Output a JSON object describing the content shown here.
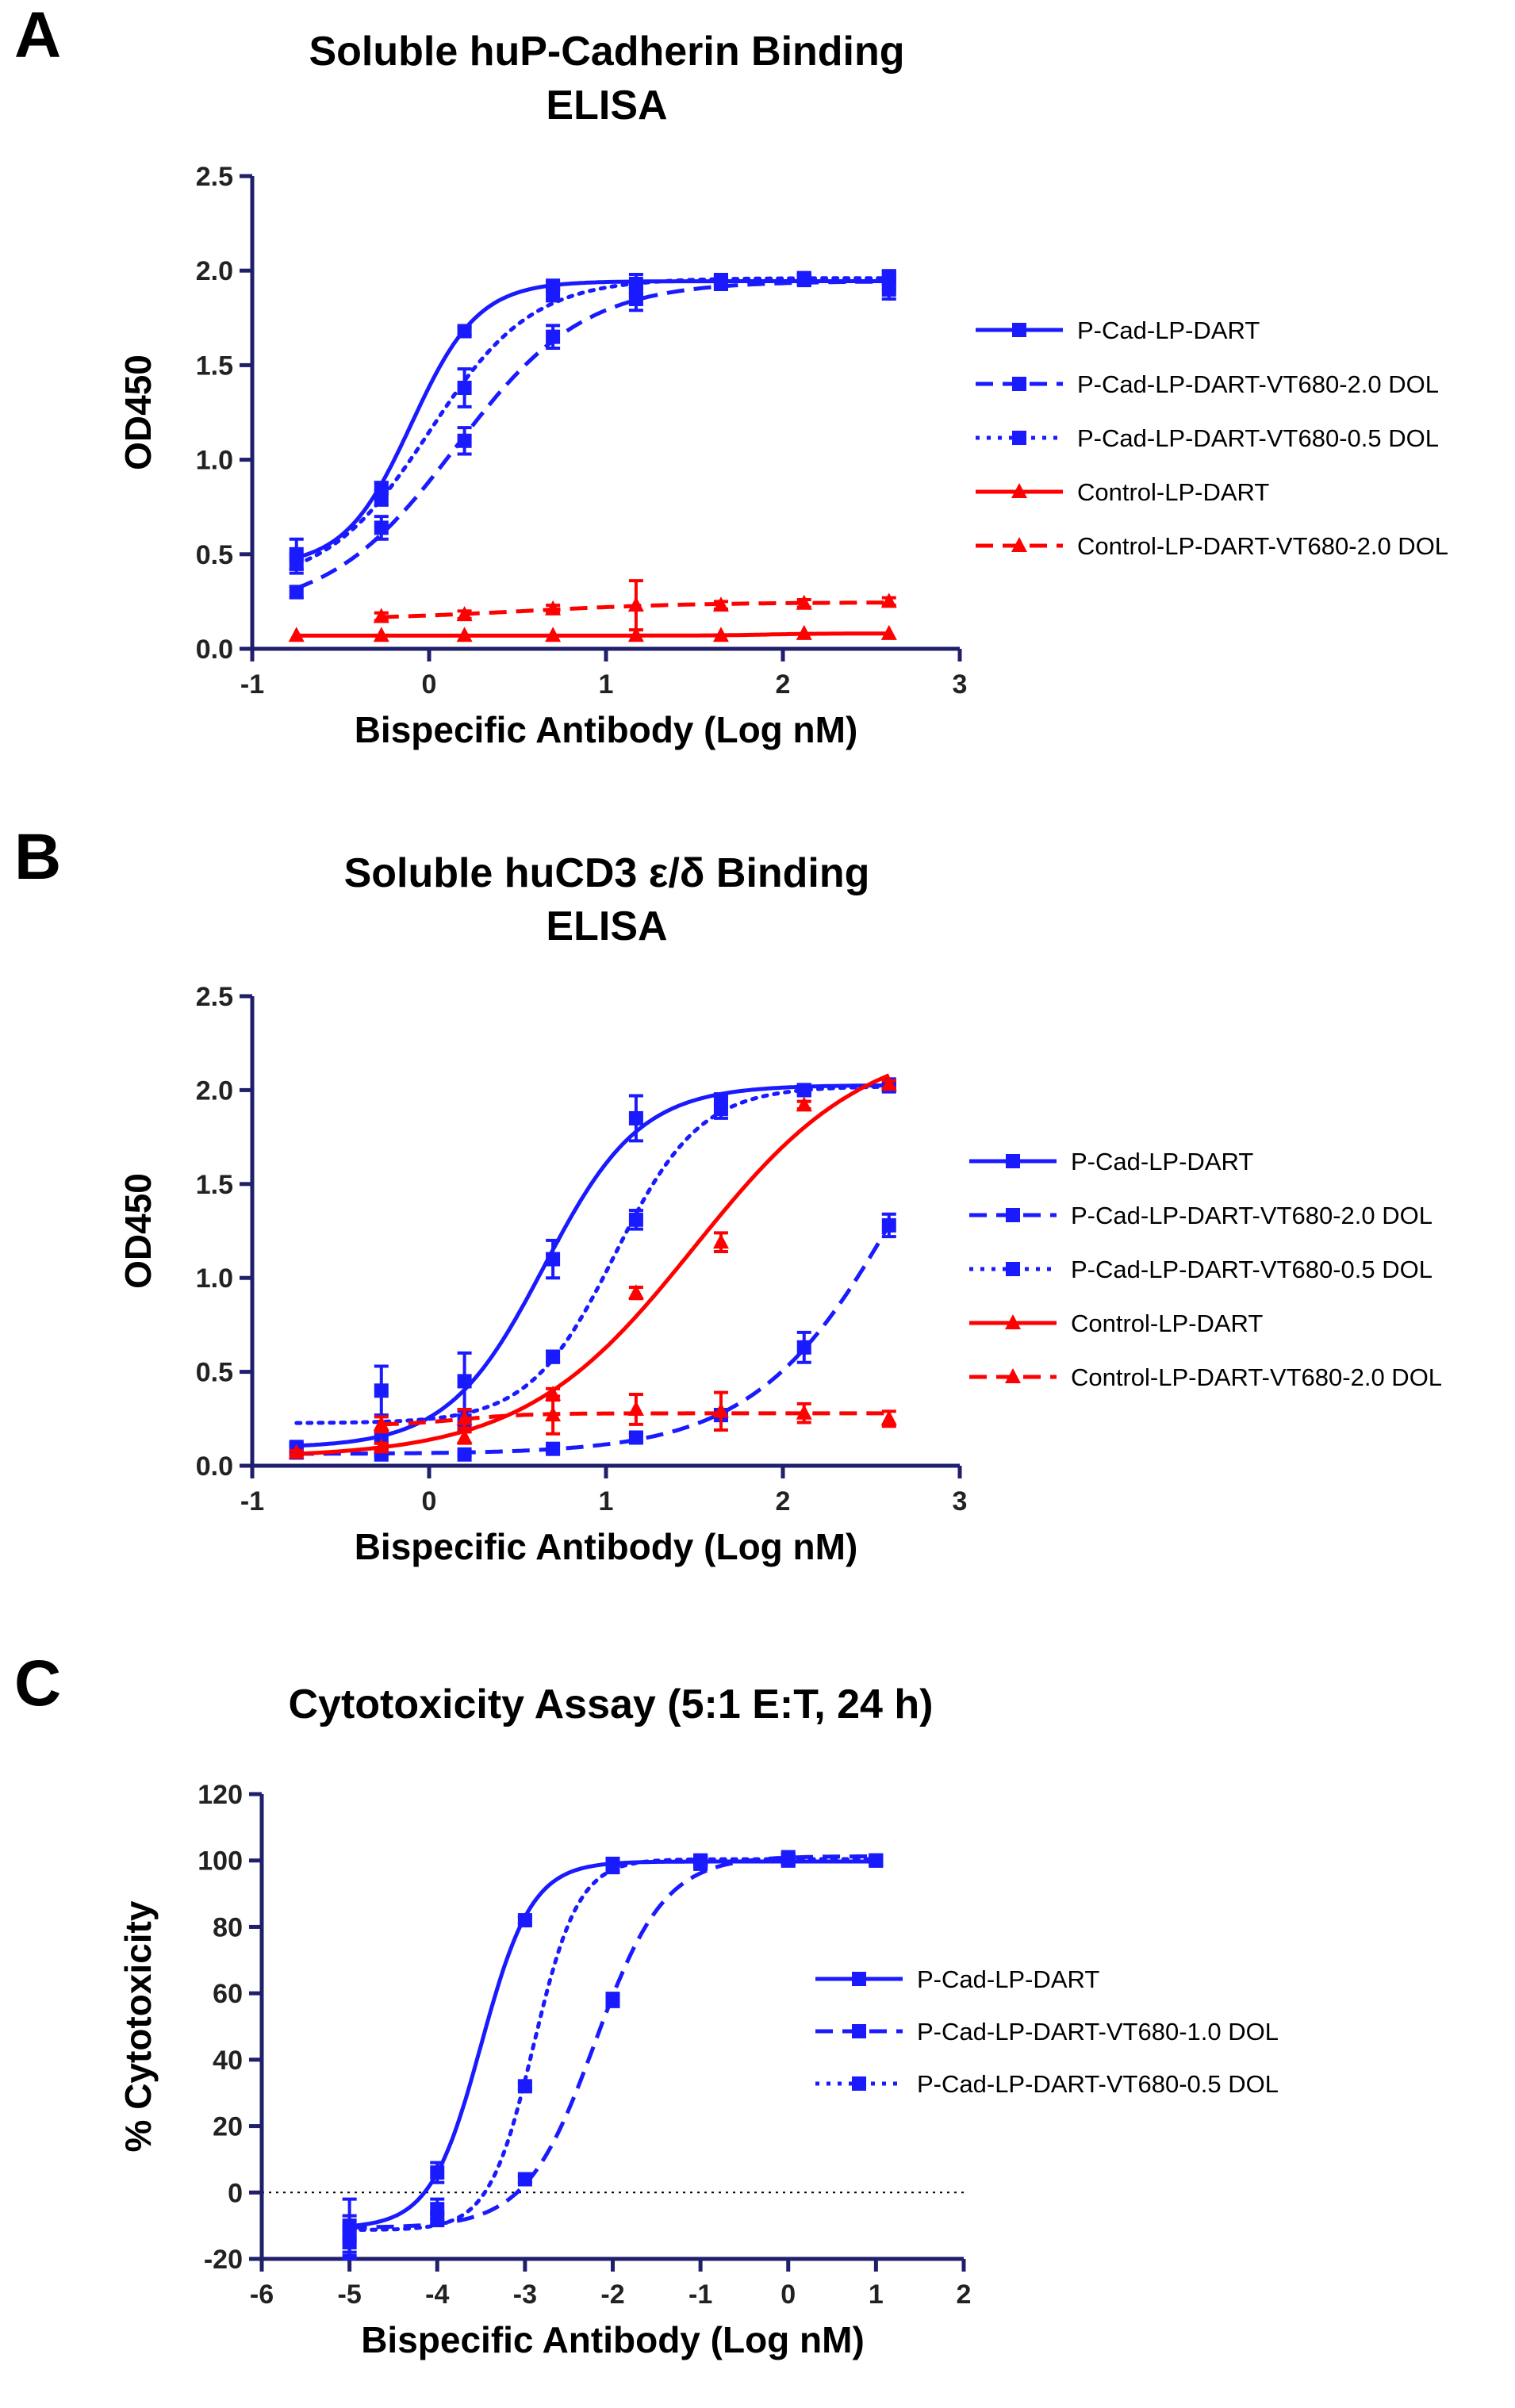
{
  "chart_data": [
    {
      "type": "line",
      "panel": "A",
      "title": [
        "Soluble huP-Cadherin Binding",
        "ELISA"
      ],
      "xlabel": "Bispecific Antibody (Log nM)",
      "ylabel": "OD450",
      "xlim": [
        -1,
        3
      ],
      "ylim": [
        0,
        2.5
      ],
      "xticks": [
        "-1",
        "0",
        "1",
        "2",
        "3"
      ],
      "yticks": [
        "0.0",
        "0.5",
        "1.0",
        "1.5",
        "2.0",
        "2.5"
      ],
      "legend_position": "right",
      "series": [
        {
          "name": "P-Cad-LP-DART",
          "color": "#1a1aff",
          "style": "solid",
          "marker": "square",
          "x": [
            -0.75,
            -0.27,
            0.2,
            0.7,
            1.17,
            1.65,
            2.12,
            2.6
          ],
          "y": [
            0.5,
            0.85,
            1.68,
            1.92,
            1.93,
            1.95,
            1.96,
            1.95
          ],
          "err": [
            0.08,
            0.03,
            0.02,
            0.02,
            0.05,
            0.03,
            0.02,
            0.05
          ]
        },
        {
          "name": "P-Cad-LP-DART-VT680-2.0 DOL",
          "color": "#1a1aff",
          "style": "dash",
          "marker": "square",
          "x": [
            -0.75,
            -0.27,
            0.2,
            0.7,
            1.17,
            1.65,
            2.12,
            2.6
          ],
          "y": [
            0.3,
            0.64,
            1.1,
            1.65,
            1.85,
            1.93,
            1.95,
            1.9
          ],
          "err": [
            0.03,
            0.06,
            0.07,
            0.06,
            0.06,
            0.03,
            0.02,
            0.05
          ]
        },
        {
          "name": "P-Cad-LP-DART-VT680-0.5 DOL",
          "color": "#1a1aff",
          "style": "dot",
          "marker": "square",
          "x": [
            -0.75,
            -0.27,
            0.2,
            0.7,
            1.17,
            1.65,
            2.12,
            2.6
          ],
          "y": [
            0.45,
            0.8,
            1.38,
            1.88,
            1.9,
            1.95,
            1.96,
            1.97
          ],
          "err": [
            0.05,
            0.04,
            0.1,
            0.04,
            0.04,
            0.02,
            0.02,
            0.02
          ]
        },
        {
          "name": "Control-LP-DART",
          "color": "#ff0000",
          "style": "solid",
          "marker": "triangle",
          "x": [
            -0.75,
            -0.27,
            0.2,
            0.7,
            1.17,
            1.65,
            2.12,
            2.6
          ],
          "y": [
            0.07,
            0.07,
            0.07,
            0.07,
            0.07,
            0.07,
            0.08,
            0.08
          ],
          "err": [
            0,
            0,
            0,
            0,
            0,
            0,
            0,
            0
          ]
        },
        {
          "name": "Control-LP-DART-VT680-2.0 DOL",
          "color": "#ff0000",
          "style": "dash",
          "marker": "triangle",
          "x": [
            -0.27,
            0.2,
            0.7,
            1.17,
            1.65,
            2.12,
            2.6
          ],
          "y": [
            0.17,
            0.18,
            0.21,
            0.23,
            0.23,
            0.24,
            0.25
          ],
          "err": [
            0.02,
            0.02,
            0.02,
            0.13,
            0.02,
            0.02,
            0.02
          ]
        }
      ]
    },
    {
      "type": "line",
      "panel": "B",
      "title": [
        "Soluble huCD3 ε/δ Binding",
        "ELISA"
      ],
      "xlabel": "Bispecific Antibody (Log nM)",
      "ylabel": "OD450",
      "xlim": [
        -1,
        3
      ],
      "ylim": [
        0,
        2.5
      ],
      "xticks": [
        "-1",
        "0",
        "1",
        "2",
        "3"
      ],
      "yticks": [
        "0.0",
        "0.5",
        "1.0",
        "1.5",
        "2.0",
        "2.5"
      ],
      "legend_position": "right",
      "series": [
        {
          "name": "P-Cad-LP-DART",
          "color": "#1a1aff",
          "style": "solid",
          "marker": "square",
          "x": [
            -0.75,
            -0.27,
            0.2,
            0.7,
            1.17,
            1.65,
            2.12,
            2.6
          ],
          "y": [
            0.09,
            0.15,
            0.45,
            1.1,
            1.85,
            1.95,
            2.0,
            2.03
          ],
          "err": [
            0.02,
            0.03,
            0.15,
            0.1,
            0.12,
            0.03,
            0.02,
            0.02
          ]
        },
        {
          "name": "P-Cad-LP-DART-VT680-2.0 DOL",
          "color": "#1a1aff",
          "style": "dash",
          "marker": "square",
          "x": [
            -0.75,
            -0.27,
            0.2,
            0.7,
            1.17,
            1.65,
            2.12,
            2.6
          ],
          "y": [
            0.07,
            0.06,
            0.06,
            0.09,
            0.15,
            0.27,
            0.63,
            1.28
          ],
          "err": [
            0.01,
            0.01,
            0.01,
            0.02,
            0.02,
            0.03,
            0.08,
            0.06
          ]
        },
        {
          "name": "P-Cad-LP-DART-VT680-0.5 DOL",
          "color": "#1a1aff",
          "style": "dot",
          "marker": "square",
          "x": [
            -0.75,
            -0.27,
            0.2,
            0.7,
            1.17,
            1.65,
            2.12,
            2.6
          ],
          "y": [
            0.1,
            0.4,
            0.24,
            0.58,
            1.31,
            1.9,
            2.0,
            2.02
          ],
          "err": [
            0.02,
            0.13,
            0.05,
            0.03,
            0.05,
            0.05,
            0.02,
            0.02
          ]
        },
        {
          "name": "Control-LP-DART",
          "color": "#ff0000",
          "style": "solid",
          "marker": "triangle",
          "x": [
            -0.75,
            -0.27,
            0.2,
            0.7,
            1.17,
            1.65,
            2.12,
            2.6
          ],
          "y": [
            0.07,
            0.1,
            0.15,
            0.38,
            0.92,
            1.19,
            1.92,
            2.03
          ],
          "err": [
            0.01,
            0.02,
            0.03,
            0.03,
            0.03,
            0.05,
            0.02,
            0.02
          ]
        },
        {
          "name": "Control-LP-DART-VT680-2.0 DOL",
          "color": "#ff0000",
          "style": "dash",
          "marker": "triangle",
          "x": [
            -0.27,
            0.2,
            0.7,
            1.17,
            1.65,
            2.12,
            2.6
          ],
          "y": [
            0.22,
            0.25,
            0.27,
            0.3,
            0.29,
            0.28,
            0.25
          ],
          "err": [
            0.04,
            0.05,
            0.1,
            0.08,
            0.1,
            0.05,
            0.04
          ]
        }
      ]
    },
    {
      "type": "line",
      "panel": "C",
      "title": [
        "Cytotoxicity Assay (5:1 E:T, 24 h)"
      ],
      "xlabel": "Bispecific Antibody (Log nM)",
      "ylabel": "% Cytotoxicity",
      "xlim": [
        -6,
        2
      ],
      "ylim": [
        -20,
        120
      ],
      "xticks": [
        "-6",
        "-5",
        "-4",
        "-3",
        "-2",
        "-1",
        "0",
        "1",
        "2"
      ],
      "yticks": [
        "-20",
        "0",
        "20",
        "40",
        "60",
        "80",
        "100",
        "120"
      ],
      "reference_line_y": 0,
      "legend_position": "right",
      "series": [
        {
          "name": "P-Cad-LP-DART",
          "color": "#1a1aff",
          "style": "solid",
          "marker": "square",
          "x": [
            -5,
            -4,
            -3,
            -2,
            -1,
            0,
            1
          ],
          "y": [
            -10,
            6,
            82,
            99,
            100,
            100,
            100
          ],
          "err": [
            8,
            3,
            1,
            1,
            1,
            1,
            1
          ]
        },
        {
          "name": "P-Cad-LP-DART-VT680-1.0 DOL",
          "color": "#1a1aff",
          "style": "dash",
          "marker": "square",
          "x": [
            -5,
            -4,
            -3,
            -2,
            -1,
            0,
            1
          ],
          "y": [
            -13,
            -8,
            4,
            58,
            99,
            100,
            100
          ],
          "err": [
            6,
            2,
            1,
            2,
            1,
            1,
            1
          ]
        },
        {
          "name": "P-Cad-LP-DART-VT680-0.5 DOL",
          "color": "#1a1aff",
          "style": "dot",
          "marker": "square",
          "x": [
            -5,
            -4,
            -3,
            -2,
            -1,
            0,
            1
          ],
          "y": [
            -15,
            -5,
            32,
            98,
            100,
            101,
            100
          ],
          "err": [
            5,
            3,
            1,
            1,
            1,
            1,
            1
          ]
        }
      ]
    }
  ]
}
